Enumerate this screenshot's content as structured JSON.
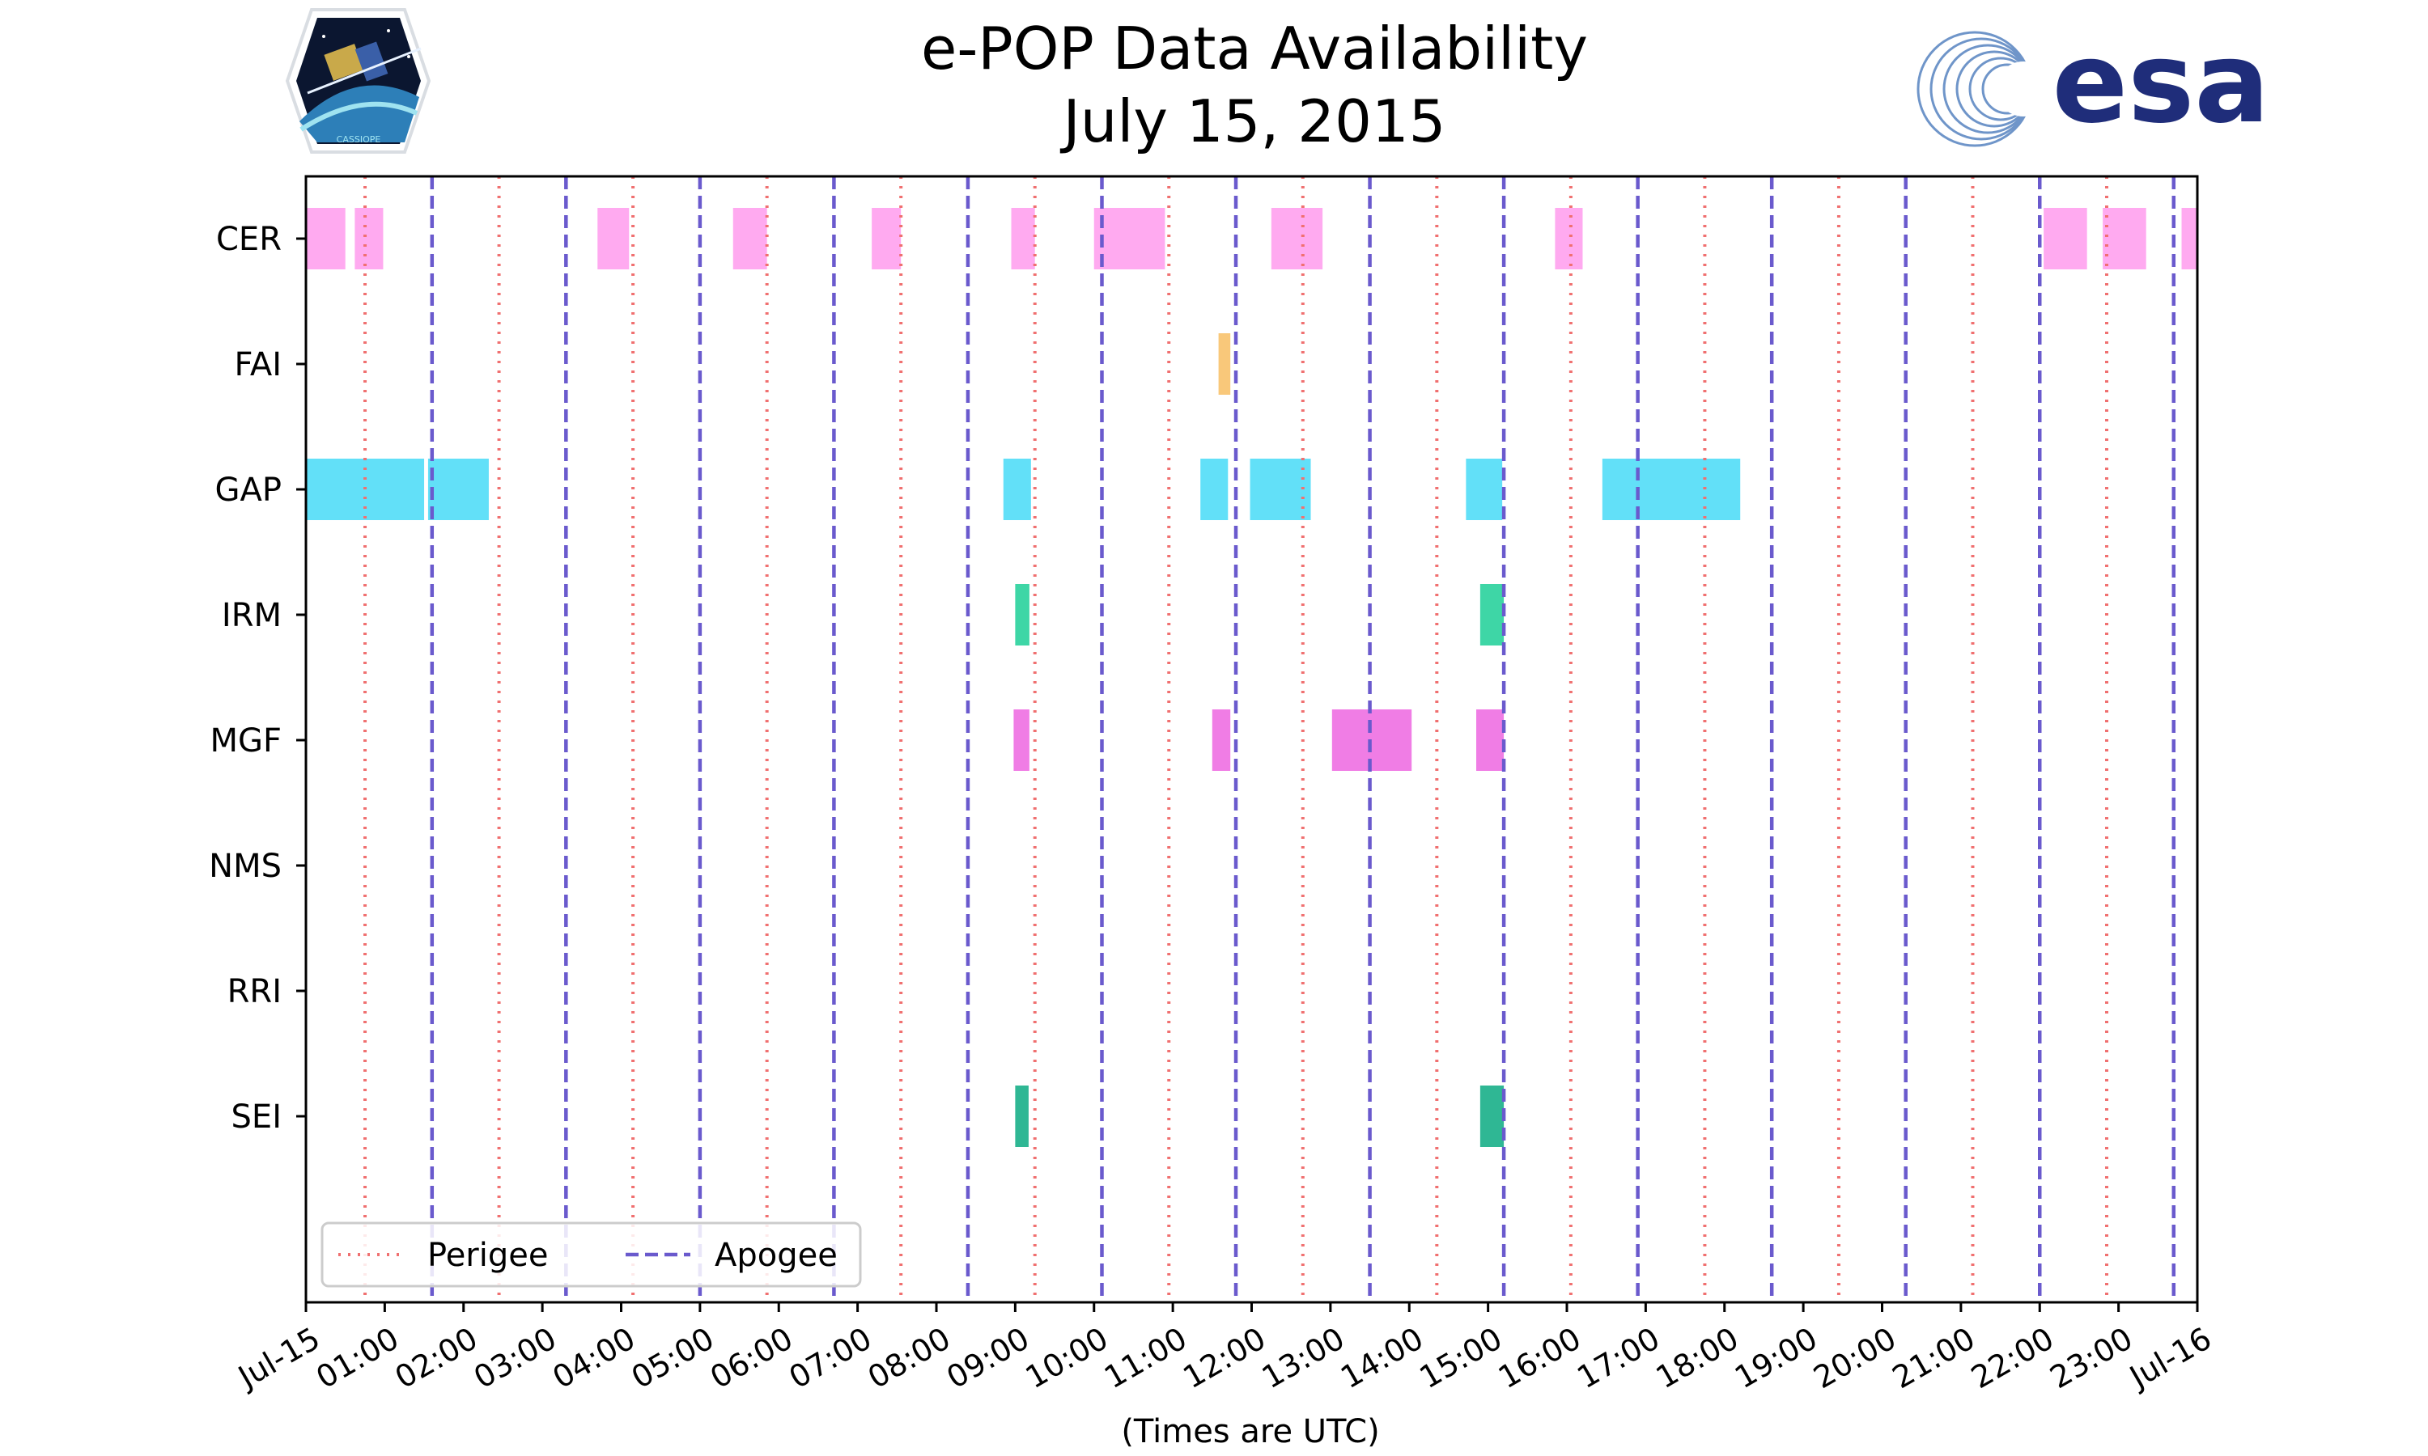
{
  "title": "e-POP Data Availability",
  "subtitle": "July 15, 2015",
  "logos": {
    "left": {
      "label": "CASSIOPE",
      "icon": "cassiope-mission-badge"
    },
    "right": {
      "label": "esa",
      "icon": "esa-logo"
    }
  },
  "chart_data": {
    "type": "timeline",
    "title": "e-POP Data Availability",
    "subtitle": "July 15, 2015",
    "xlabel": "(Times are UTC)",
    "ylabel": "",
    "xlim_hours": [
      0,
      24
    ],
    "x_tick_hours": [
      0,
      1,
      2,
      3,
      4,
      5,
      6,
      7,
      8,
      9,
      10,
      11,
      12,
      13,
      14,
      15,
      16,
      17,
      18,
      19,
      20,
      21,
      22,
      23,
      24
    ],
    "x_tick_labels": [
      "Jul-15",
      "01:00",
      "02:00",
      "03:00",
      "04:00",
      "05:00",
      "06:00",
      "07:00",
      "08:00",
      "09:00",
      "10:00",
      "11:00",
      "12:00",
      "13:00",
      "14:00",
      "15:00",
      "16:00",
      "17:00",
      "18:00",
      "19:00",
      "20:00",
      "21:00",
      "22:00",
      "23:00",
      "Jul-16"
    ],
    "instruments": [
      "CER",
      "FAI",
      "GAP",
      "IRM",
      "MGF",
      "NMS",
      "RRI",
      "SEI"
    ],
    "series": [
      {
        "name": "CER",
        "color": "#ffaaf0",
        "intervals": [
          [
            0.0,
            0.5
          ],
          [
            0.62,
            0.98
          ],
          [
            3.7,
            4.1
          ],
          [
            5.42,
            5.85
          ],
          [
            7.18,
            7.55
          ],
          [
            8.95,
            9.25
          ],
          [
            10.0,
            10.9
          ],
          [
            12.25,
            12.9
          ],
          [
            15.85,
            16.2
          ],
          [
            22.05,
            22.6
          ],
          [
            22.8,
            23.35
          ],
          [
            23.8,
            24.0
          ]
        ]
      },
      {
        "name": "FAI",
        "color": "#f9c87a",
        "intervals": [
          [
            11.58,
            11.73
          ]
        ]
      },
      {
        "name": "GAP",
        "color": "#62e0f8",
        "intervals": [
          [
            0.0,
            1.5
          ],
          [
            1.55,
            2.32
          ],
          [
            8.85,
            9.2
          ],
          [
            11.35,
            11.7
          ],
          [
            11.98,
            12.75
          ],
          [
            14.72,
            15.18
          ],
          [
            16.45,
            18.2
          ]
        ]
      },
      {
        "name": "IRM",
        "color": "#3ed6a6",
        "intervals": [
          [
            9.0,
            9.18
          ],
          [
            14.9,
            15.2
          ]
        ]
      },
      {
        "name": "MGF",
        "color": "#f07de5",
        "intervals": [
          [
            8.98,
            9.18
          ],
          [
            11.5,
            11.73
          ],
          [
            13.02,
            14.03
          ],
          [
            14.85,
            15.2
          ]
        ]
      },
      {
        "name": "NMS",
        "color": "#9fa8da",
        "intervals": []
      },
      {
        "name": "RRI",
        "color": "#b0bec5",
        "intervals": []
      },
      {
        "name": "SEI",
        "color": "#2fb794",
        "intervals": [
          [
            9.0,
            9.17
          ],
          [
            14.9,
            15.2
          ]
        ]
      }
    ],
    "perigee_hours": [
      0.75,
      2.45,
      4.15,
      5.85,
      7.55,
      9.25,
      10.95,
      12.65,
      14.35,
      16.05,
      17.75,
      19.45,
      21.15,
      22.85
    ],
    "apogee_hours": [
      1.6,
      3.3,
      5.0,
      6.7,
      8.4,
      10.1,
      11.8,
      13.5,
      15.2,
      16.9,
      18.6,
      20.3,
      22.0,
      23.7
    ],
    "perigee_color": "#f07070",
    "apogee_color": "#6a5acd",
    "legend": {
      "position": "lower-left",
      "entries": [
        "Perigee",
        "Apogee"
      ]
    }
  }
}
